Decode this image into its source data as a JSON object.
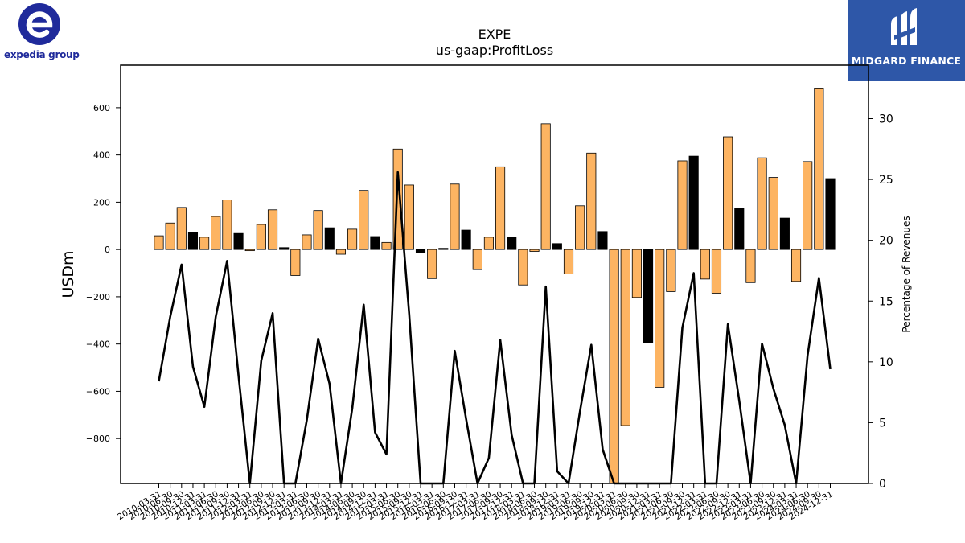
{
  "logos": {
    "left_text": "expedia group",
    "right_text": "MIDGARD FINANCE"
  },
  "chart_data": {
    "type": "bar",
    "title": "EXPE",
    "subtitle": "us-gaap:ProfitLoss",
    "ylabel": "USDm",
    "y2label": "Percentage of Revenues",
    "ylim": [
      -990,
      780
    ],
    "y2lim": [
      0,
      34.4
    ],
    "yticks": [
      -800,
      -600,
      -400,
      -200,
      0,
      200,
      400,
      600
    ],
    "y2ticks": [
      0,
      5,
      10,
      15,
      20,
      25,
      30
    ],
    "categories": [
      "2010-03-31",
      "2010-06-30",
      "2010-09-30",
      "2010-12-31",
      "2011-03-31",
      "2011-06-30",
      "2011-09-30",
      "2011-12-31",
      "2012-03-31",
      "2012-06-30",
      "2012-09-30",
      "2012-12-31",
      "2013-03-31",
      "2013-06-30",
      "2013-09-30",
      "2013-12-31",
      "2014-03-31",
      "2014-06-30",
      "2014-09-30",
      "2014-12-31",
      "2015-03-31",
      "2015-06-30",
      "2015-09-30",
      "2015-12-31",
      "2016-03-31",
      "2016-06-30",
      "2016-09-30",
      "2016-12-31",
      "2017-03-31",
      "2017-06-30",
      "2017-09-30",
      "2017-12-31",
      "2018-03-31",
      "2018-06-30",
      "2018-09-30",
      "2018-12-31",
      "2019-03-31",
      "2019-06-30",
      "2019-09-30",
      "2019-12-31",
      "2020-03-31",
      "2020-06-30",
      "2020-09-30",
      "2020-12-31",
      "2021-03-31",
      "2021-06-30",
      "2021-09-30",
      "2021-12-31",
      "2022-03-31",
      "2022-06-30",
      "2022-09-30",
      "2022-12-31",
      "2023-03-31",
      "2023-06-30",
      "2023-09-30",
      "2023-12-31",
      "2024-03-31",
      "2024-06-30",
      "2024-09-30",
      "2024-12-31"
    ],
    "values": [
      58,
      112,
      178,
      72,
      52,
      140,
      210,
      68,
      -5,
      106,
      168,
      8,
      -110,
      62,
      165,
      92,
      -20,
      86,
      250,
      55,
      30,
      425,
      273,
      -12,
      -123,
      5,
      277,
      82,
      -85,
      52,
      350,
      52,
      -150,
      -8,
      532,
      25,
      -103,
      185,
      408,
      76,
      -990,
      -745,
      -203,
      -395,
      -583,
      -178,
      375,
      395,
      -125,
      -185,
      477,
      175,
      -140,
      388,
      305,
      133,
      -135,
      372,
      680,
      300
    ],
    "bar_colors": {
      "quarterly": "#fdb462",
      "annual": "#000000"
    },
    "annual_flags": [
      0,
      0,
      0,
      1,
      0,
      0,
      0,
      1,
      0,
      0,
      0,
      1,
      0,
      0,
      0,
      1,
      0,
      0,
      0,
      1,
      0,
      0,
      0,
      1,
      0,
      0,
      0,
      1,
      0,
      0,
      0,
      1,
      0,
      0,
      0,
      1,
      0,
      0,
      0,
      1,
      0,
      0,
      0,
      1,
      0,
      0,
      0,
      1,
      0,
      0,
      0,
      1,
      0,
      0,
      0,
      1,
      0,
      0,
      0,
      1
    ],
    "line": {
      "name": "",
      "color": "#000000",
      "values": [
        8.4,
        13.7,
        18.0,
        9.6,
        6.3,
        13.7,
        18.3,
        8.9,
        0,
        10.1,
        14.0,
        0,
        0,
        5.2,
        11.9,
        8.2,
        0,
        6.2,
        14.7,
        4.2,
        2.4,
        25.6,
        13.9,
        0,
        0,
        0,
        10.9,
        5.3,
        0,
        2.1,
        11.8,
        4.0,
        0,
        0,
        16.2,
        1.0,
        0,
        5.9,
        11.4,
        2.8,
        0,
        0,
        0,
        0,
        0,
        0,
        12.8,
        17.3,
        0,
        0,
        13.1,
        6.8,
        0,
        11.5,
        7.8,
        4.8,
        0,
        10.5,
        16.9,
        9.4
      ]
    },
    "grid": false,
    "legend": "none"
  }
}
